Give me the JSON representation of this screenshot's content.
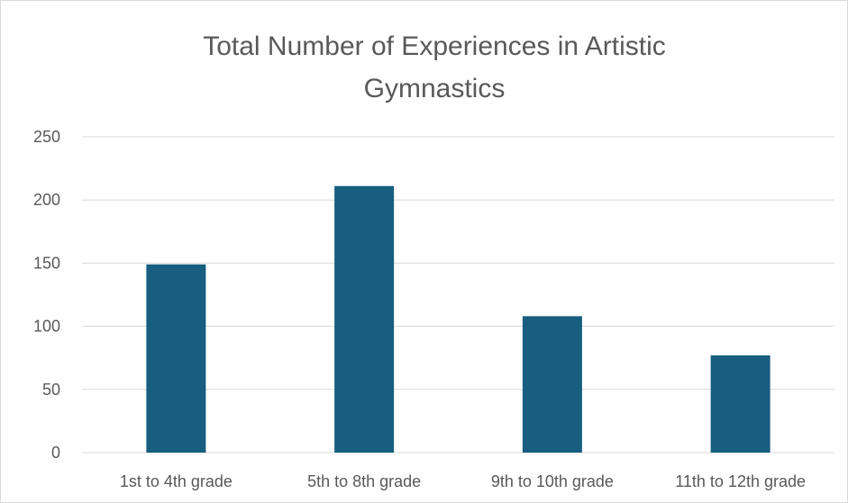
{
  "chart_data": {
    "type": "bar",
    "title_lines": [
      "Total Number of Experiences in Artistic",
      "Gymnastics"
    ],
    "categories": [
      "1st to 4th grade",
      "5th to 8th grade",
      "9th to 10th grade",
      "11th to 12th grade"
    ],
    "values": [
      149,
      211,
      108,
      77
    ],
    "ylim": [
      0,
      250
    ],
    "y_ticks": [
      "0",
      "50",
      "100",
      "150",
      "200",
      "250"
    ],
    "grid": true,
    "legend": "none",
    "bar_color": "#175e80",
    "xlabel": "",
    "ylabel": ""
  }
}
